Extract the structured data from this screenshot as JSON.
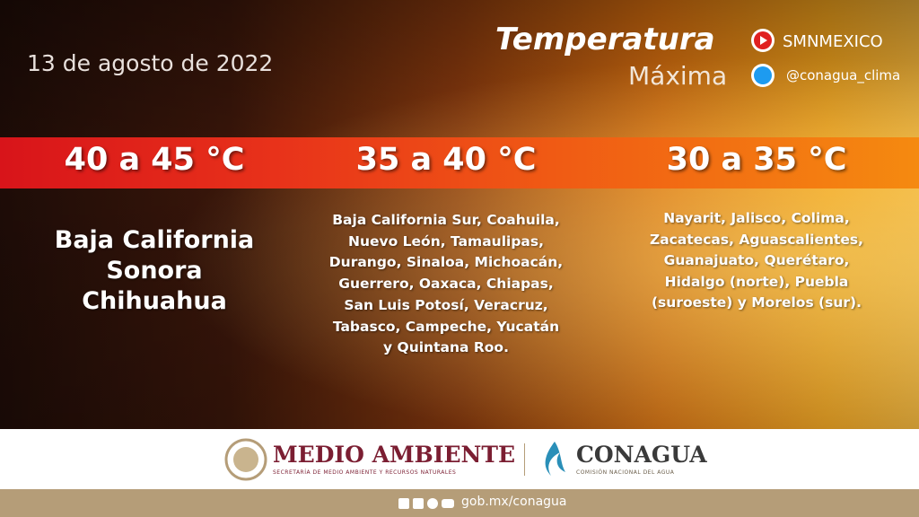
{
  "header": {
    "date": "13 de agosto de 2022",
    "title": "Temperatura",
    "subtitle": "Máxima",
    "social": [
      "SMNMEXICO",
      "@conagua_clima"
    ]
  },
  "columns": [
    {
      "range": "40 a 45 °C",
      "lines": [
        "Baja California",
        "Sonora",
        "Chihuahua"
      ]
    },
    {
      "range": "35 a 40 °C",
      "lines": [
        "Baja California Sur, Coahuila,",
        "Nuevo León, Tamaulipas,",
        "Durango, Sinaloa, Michoacán,",
        "Guerrero, Oaxaca, Chiapas,",
        "San Luis Potosí, Veracruz,",
        "Tabasco, Campeche, Yucatán",
        "y Quintana Roo."
      ]
    },
    {
      "range": "30 a 35 °C",
      "lines": [
        "Nayarit, Jalisco, Colima,",
        "Zacatecas, Aguascalientes,",
        "Guanajuato, Querétaro,",
        "Hidalgo (norte), Puebla",
        "(suroeste) y Morelos (sur)."
      ]
    }
  ],
  "footer": {
    "ministry": "MEDIO AMBIENTE",
    "ministry_subtitle": "SECRETARÍA DE MEDIO AMBIENTE Y RECURSOS NATURALES",
    "agency": "CONAGUA",
    "agency_subtitle": "COMISIÓN NACIONAL DEL AGUA",
    "website": "gob.mx/conagua"
  }
}
